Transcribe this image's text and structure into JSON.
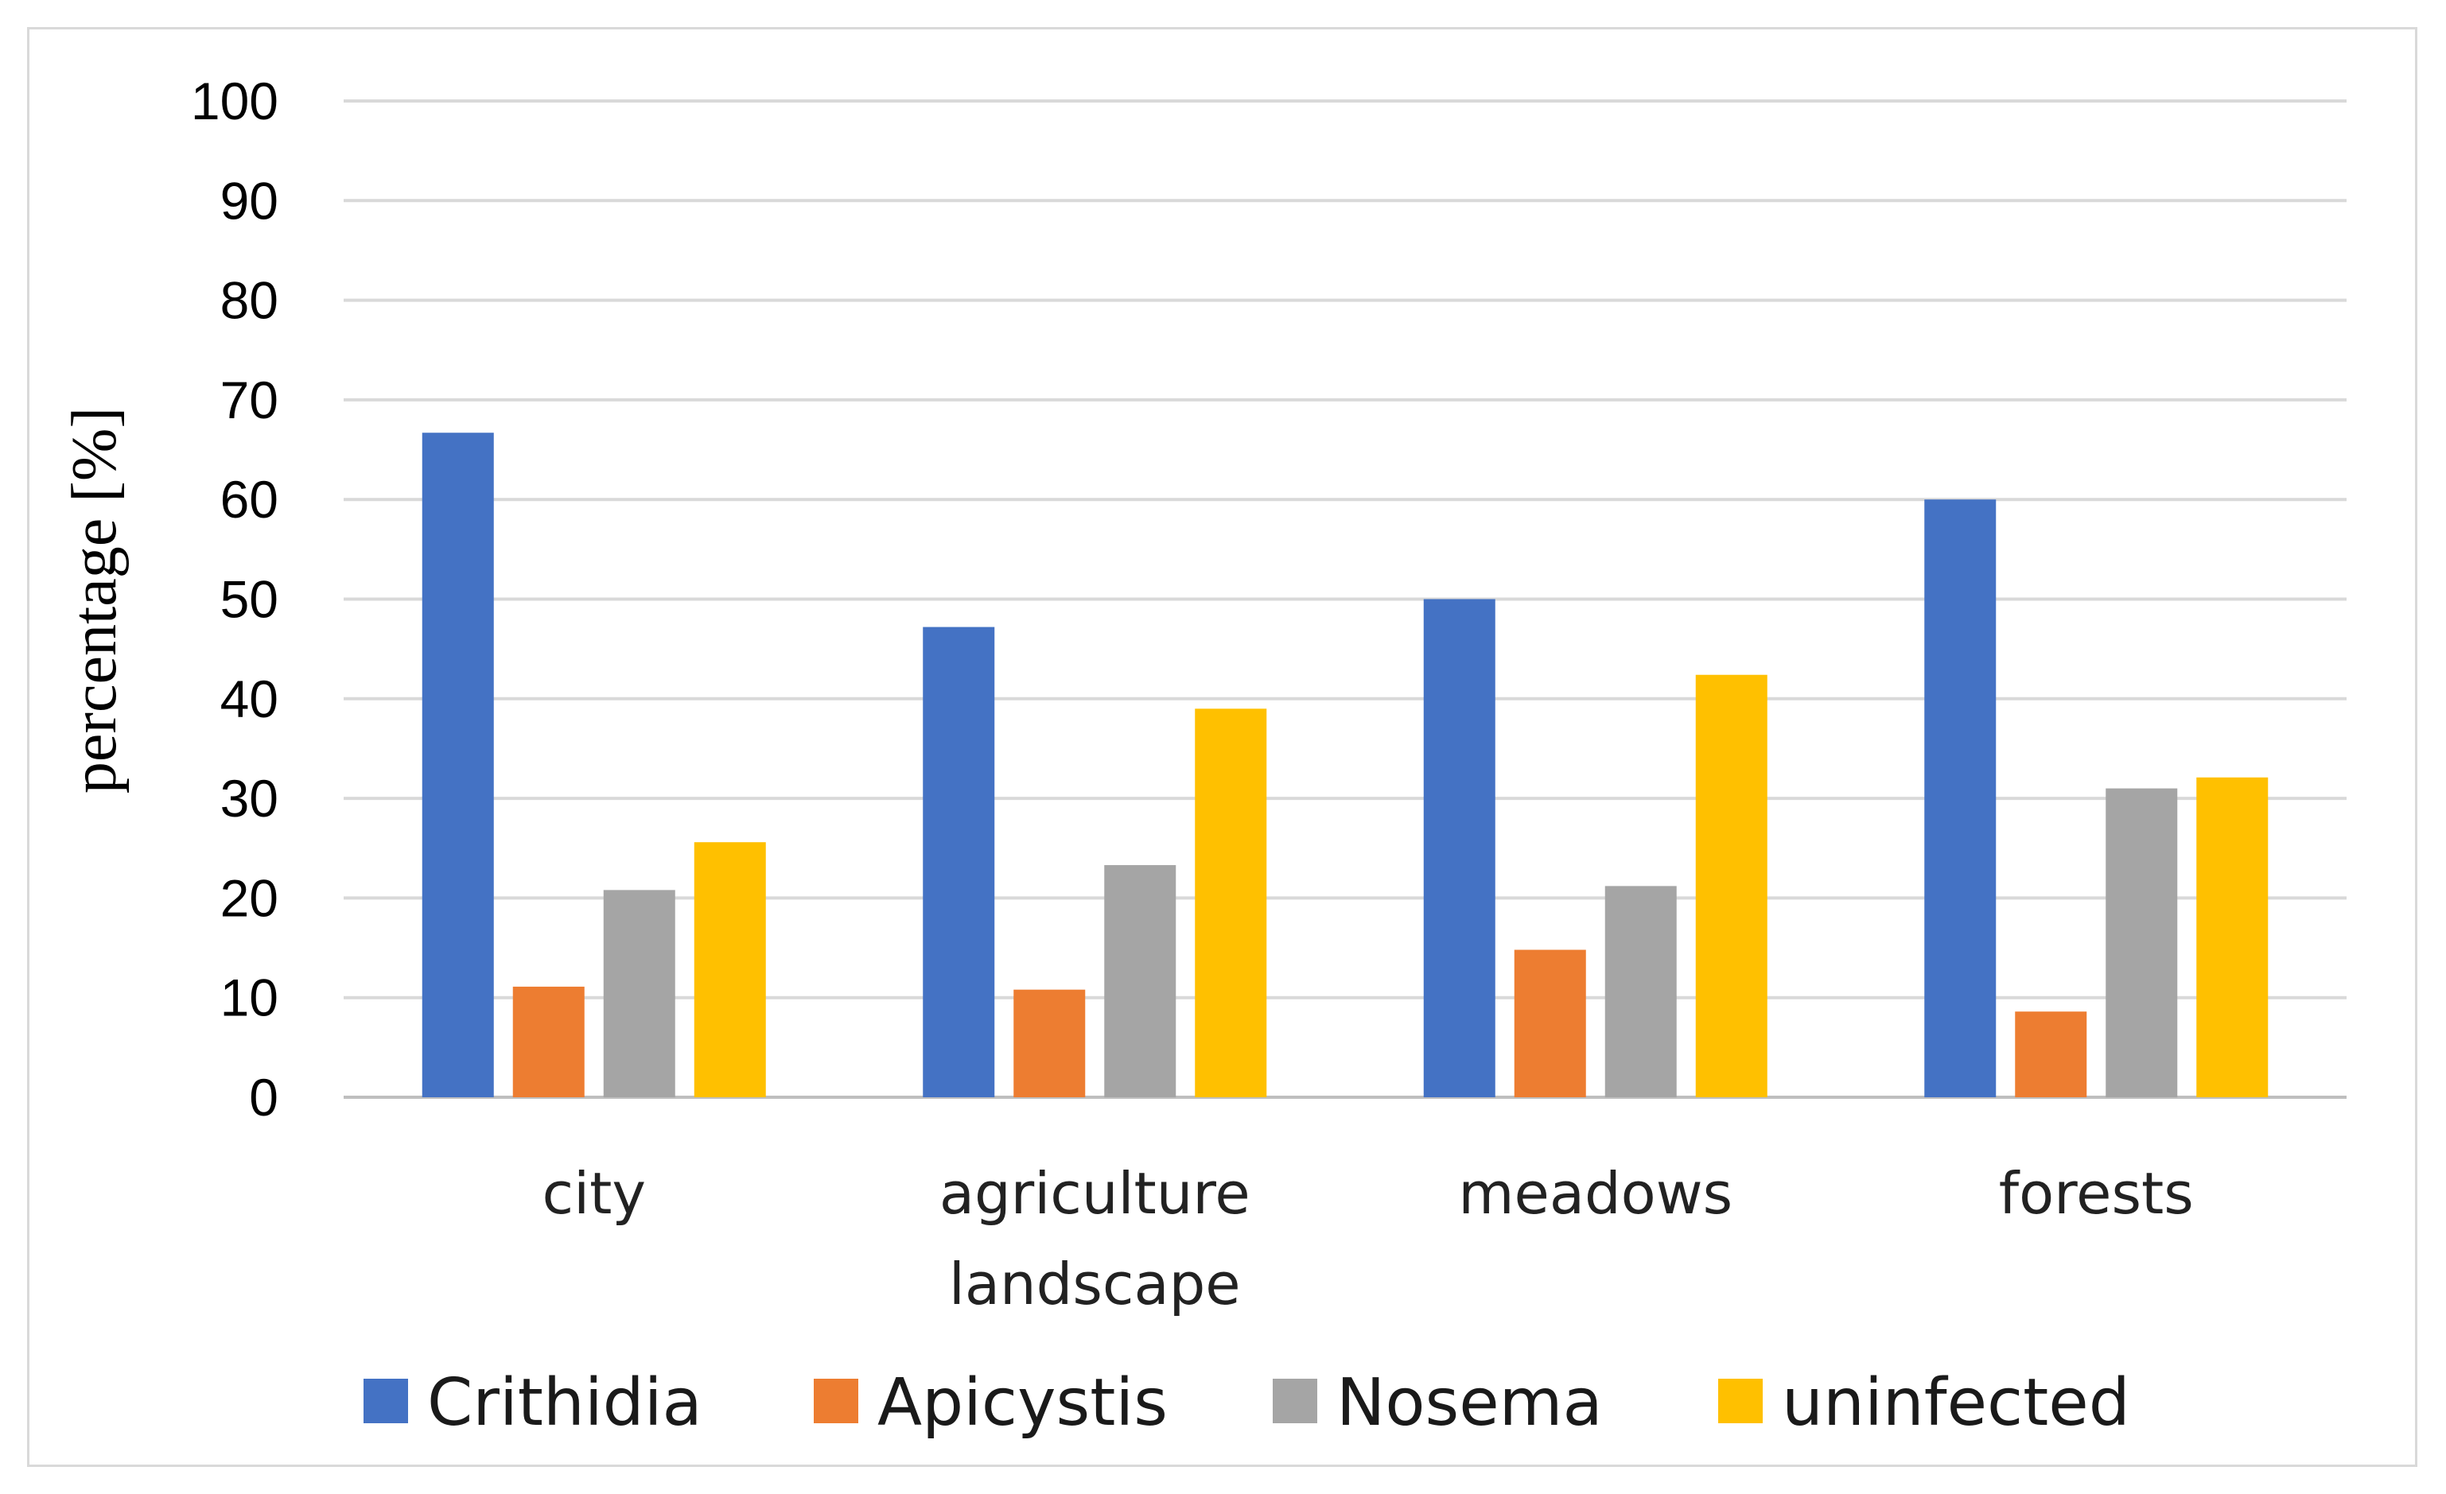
{
  "chart_data": {
    "type": "bar",
    "title": "",
    "xlabel": "",
    "ylabel": "percentage [%]",
    "ylim": [
      0,
      100
    ],
    "yticks": [
      0,
      10,
      20,
      30,
      40,
      50,
      60,
      70,
      80,
      90,
      100
    ],
    "grid": true,
    "legend_position": "bottom",
    "categories": [
      {
        "lines": [
          "city"
        ]
      },
      {
        "lines": [
          "agriculture",
          "landscape"
        ]
      },
      {
        "lines": [
          "meadows"
        ]
      },
      {
        "lines": [
          "forests"
        ]
      }
    ],
    "series": [
      {
        "name": "Crithidia",
        "color": "#4472c4",
        "values": [
          66.7,
          47.2,
          50.0,
          60.0
        ]
      },
      {
        "name": "Apicystis",
        "color": "#ed7d31",
        "values": [
          11.1,
          10.8,
          14.8,
          8.6
        ]
      },
      {
        "name": "Nosema",
        "color": "#a5a5a5",
        "values": [
          20.8,
          23.3,
          21.2,
          31.0
        ]
      },
      {
        "name": "uninfected",
        "color": "#ffc000",
        "values": [
          25.6,
          39.0,
          42.4,
          32.1
        ]
      }
    ]
  }
}
